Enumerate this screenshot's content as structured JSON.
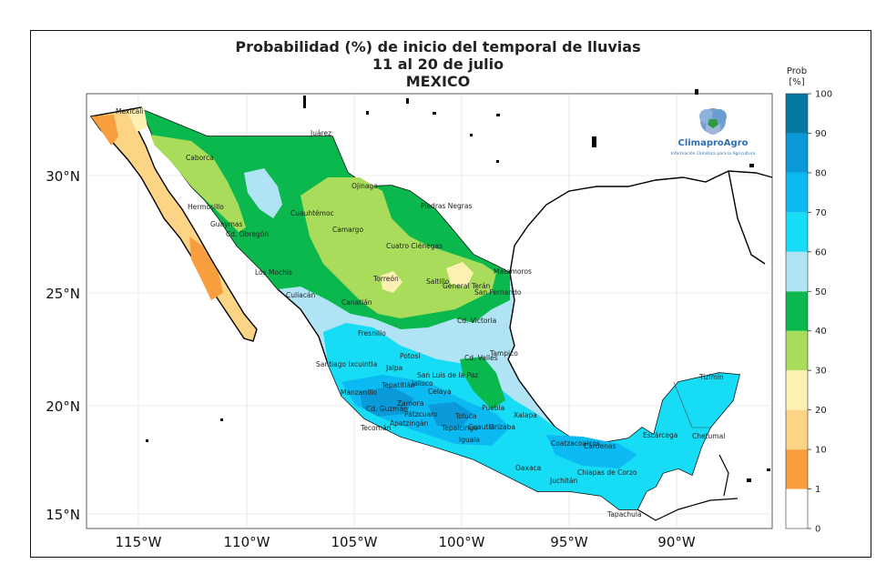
{
  "title": {
    "line1": "Probabilidad (%) de inicio del temporal de lluvias",
    "line2": "11 al 20 de julio",
    "line3": "MEXICO"
  },
  "colorbar": {
    "label_top": "Prob",
    "label_unit": "[%]",
    "bins": [
      {
        "from": 0,
        "to": 1,
        "color": "#ffffff"
      },
      {
        "from": 1,
        "to": 10,
        "color": "#f99e3c"
      },
      {
        "from": 10,
        "to": 20,
        "color": "#fbd485"
      },
      {
        "from": 20,
        "to": 30,
        "color": "#fdf0b3"
      },
      {
        "from": 30,
        "to": 40,
        "color": "#a8dc5a"
      },
      {
        "from": 40,
        "to": 50,
        "color": "#0bb84e"
      },
      {
        "from": 50,
        "to": 60,
        "color": "#b0e4f5"
      },
      {
        "from": 60,
        "to": 70,
        "color": "#17dcf6"
      },
      {
        "from": 70,
        "to": 80,
        "color": "#0bbaf2"
      },
      {
        "from": 80,
        "to": 90,
        "color": "#0a9ad9"
      },
      {
        "from": 90,
        "to": 100,
        "color": "#0579a1"
      }
    ],
    "ticks": [
      "0",
      "1",
      "10",
      "20",
      "30",
      "40",
      "50",
      "60",
      "70",
      "80",
      "90",
      "100"
    ]
  },
  "axes": {
    "lon_labels": [
      "115°W",
      "110°W",
      "105°W",
      "100°W",
      "95°W",
      "90°W"
    ],
    "lat_labels": [
      "30°N",
      "25°N",
      "20°N",
      "15°N"
    ]
  },
  "logo": {
    "name": "ClimaproAgro",
    "tagline": "Información Climática para la Agricultura"
  },
  "cities": [
    "Mexicali",
    "Juárez",
    "Caborca",
    "Ojinaga",
    "Hermosillo",
    "Cuauhtémoc",
    "Piedras Negras",
    "Guaymas",
    "Cd. Obregón",
    "Camargo",
    "Cuatro Ciénegas",
    "Matamoros",
    "Los Mochis",
    "Torreón",
    "Saltillo",
    "General Terán",
    "San Fernando",
    "Culiacán",
    "Canatlán",
    "Cd. Victoria",
    "Fresnillo",
    "Tampico",
    "Potosí",
    "Cd. Valles",
    "Santiago Ixcuintla",
    "Jalpa",
    "San Luis de la Paz",
    "Tepatitlán",
    "Celaya",
    "Jalisco",
    "Manzanillo",
    "Zamora",
    "Cd. Guzmán",
    "Pátzcuaro",
    "Toluca",
    "Xalapa",
    "Apatzingán",
    "Tecomán",
    "Tepalcingo",
    "Cuautla",
    "Orizaba",
    "Puebla",
    "Iguala",
    "Coatzacoalcos",
    "Cárdenas",
    "Oaxaca",
    "Juchitán",
    "Chiapas de Corzo",
    "Tapachula",
    "Tizimín",
    "Chetumal",
    "Escárcega"
  ]
}
